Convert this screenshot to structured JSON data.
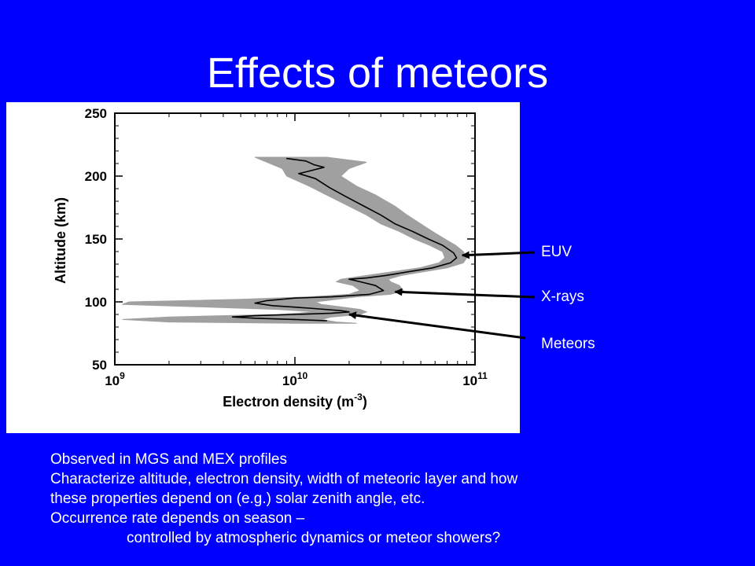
{
  "slide": {
    "title": "Effects of meteors"
  },
  "chart_data": {
    "type": "line",
    "xlabel": "Electron density (m-3)",
    "ylabel": "Altitude (km)",
    "x_scale": "log",
    "xlim": [
      1000000000.0,
      100000000000.0
    ],
    "ylim": [
      50,
      250
    ],
    "x_ticks": [
      {
        "value": 1000000000.0,
        "base": "10",
        "exp": "9"
      },
      {
        "value": 10000000000.0,
        "base": "10",
        "exp": "10"
      },
      {
        "value": 100000000000.0,
        "base": "10",
        "exp": "11"
      }
    ],
    "y_ticks": [
      50,
      100,
      150,
      200,
      250
    ],
    "series": [
      {
        "role": "mean profile",
        "color": "#000000",
        "points": [
          {
            "x": 9000000000.0,
            "y": 214
          },
          {
            "x": 11500000000.0,
            "y": 212
          },
          {
            "x": 12800000000.0,
            "y": 209
          },
          {
            "x": 14500000000.0,
            "y": 207
          },
          {
            "x": 12000000000.0,
            "y": 204
          },
          {
            "x": 10500000000.0,
            "y": 202
          },
          {
            "x": 13000000000.0,
            "y": 198
          },
          {
            "x": 15500000000.0,
            "y": 191
          },
          {
            "x": 19000000000.0,
            "y": 184
          },
          {
            "x": 25000000000.0,
            "y": 175
          },
          {
            "x": 30000000000.0,
            "y": 169
          },
          {
            "x": 36000000000.0,
            "y": 162
          },
          {
            "x": 45000000000.0,
            "y": 156
          },
          {
            "x": 55000000000.0,
            "y": 150
          },
          {
            "x": 66000000000.0,
            "y": 145
          },
          {
            "x": 76000000000.0,
            "y": 139
          },
          {
            "x": 79000000000.0,
            "y": 135
          },
          {
            "x": 73000000000.0,
            "y": 131
          },
          {
            "x": 58000000000.0,
            "y": 127
          },
          {
            "x": 43000000000.0,
            "y": 124
          },
          {
            "x": 32000000000.0,
            "y": 121
          },
          {
            "x": 25000000000.0,
            "y": 119
          },
          {
            "x": 20000000000.0,
            "y": 118
          },
          {
            "x": 23000000000.0,
            "y": 116
          },
          {
            "x": 28000000000.0,
            "y": 113
          },
          {
            "x": 31000000000.0,
            "y": 109
          },
          {
            "x": 26000000000.0,
            "y": 106
          },
          {
            "x": 16000000000.0,
            "y": 104
          },
          {
            "x": 10000000000.0,
            "y": 103
          },
          {
            "x": 7000000000.0,
            "y": 101
          },
          {
            "x": 6000000000.0,
            "y": 99
          },
          {
            "x": 7500000000.0,
            "y": 97
          },
          {
            "x": 12000000000.0,
            "y": 95
          },
          {
            "x": 18000000000.0,
            "y": 93
          },
          {
            "x": 20000000000.0,
            "y": 92
          },
          {
            "x": 16000000000.0,
            "y": 91
          },
          {
            "x": 10000000000.0,
            "y": 90
          },
          {
            "x": 6000000000.0,
            "y": 89
          },
          {
            "x": 4500000000.0,
            "y": 88
          },
          {
            "x": 6000000000.0,
            "y": 87
          },
          {
            "x": 10000000000.0,
            "y": 86
          },
          {
            "x": 15000000000.0,
            "y": 85
          }
        ]
      },
      {
        "role": "variability band",
        "color": "#a0a0a0",
        "lower": [
          {
            "x": 6000000000.0,
            "y": 215
          },
          {
            "x": 7000000000.0,
            "y": 211
          },
          {
            "x": 8500000000.0,
            "y": 206
          },
          {
            "x": 9000000000.0,
            "y": 200
          },
          {
            "x": 12000000000.0,
            "y": 192
          },
          {
            "x": 15000000000.0,
            "y": 185
          },
          {
            "x": 20000000000.0,
            "y": 176
          },
          {
            "x": 25000000000.0,
            "y": 169
          },
          {
            "x": 30000000000.0,
            "y": 162
          },
          {
            "x": 38000000000.0,
            "y": 156
          },
          {
            "x": 46000000000.0,
            "y": 150
          },
          {
            "x": 56000000000.0,
            "y": 145
          },
          {
            "x": 66000000000.0,
            "y": 140
          },
          {
            "x": 68000000000.0,
            "y": 135
          },
          {
            "x": 63000000000.0,
            "y": 131
          },
          {
            "x": 49000000000.0,
            "y": 127
          },
          {
            "x": 35000000000.0,
            "y": 124
          },
          {
            "x": 25000000000.0,
            "y": 121
          },
          {
            "x": 18000000000.0,
            "y": 118
          },
          {
            "x": 17000000000.0,
            "y": 116
          },
          {
            "x": 21000000000.0,
            "y": 113
          },
          {
            "x": 23000000000.0,
            "y": 109
          },
          {
            "x": 20000000000.0,
            "y": 106
          },
          {
            "x": 12000000000.0,
            "y": 104
          },
          {
            "x": 5000000000.0,
            "y": 102
          },
          {
            "x": 1200000000.0,
            "y": 100
          },
          {
            "x": 1100000000.0,
            "y": 98
          },
          {
            "x": 3000000000.0,
            "y": 96
          },
          {
            "x": 8000000000.0,
            "y": 94
          },
          {
            "x": 13000000000.0,
            "y": 92
          },
          {
            "x": 8000000000.0,
            "y": 90
          },
          {
            "x": 2000000000.0,
            "y": 88
          },
          {
            "x": 1100000000.0,
            "y": 86
          },
          {
            "x": 2000000000.0,
            "y": 84
          },
          {
            "x": 10000000000.0,
            "y": 83
          }
        ],
        "upper": [
          {
            "x": 15000000000.0,
            "y": 215
          },
          {
            "x": 25000000000.0,
            "y": 211
          },
          {
            "x": 20000000000.0,
            "y": 206
          },
          {
            "x": 18000000000.0,
            "y": 200
          },
          {
            "x": 22000000000.0,
            "y": 192
          },
          {
            "x": 28000000000.0,
            "y": 185
          },
          {
            "x": 36000000000.0,
            "y": 176
          },
          {
            "x": 42000000000.0,
            "y": 169
          },
          {
            "x": 50000000000.0,
            "y": 162
          },
          {
            "x": 58000000000.0,
            "y": 156
          },
          {
            "x": 68000000000.0,
            "y": 150
          },
          {
            "x": 78000000000.0,
            "y": 145
          },
          {
            "x": 86000000000.0,
            "y": 140
          },
          {
            "x": 90000000000.0,
            "y": 135
          },
          {
            "x": 86000000000.0,
            "y": 131
          },
          {
            "x": 70000000000.0,
            "y": 127
          },
          {
            "x": 52000000000.0,
            "y": 124
          },
          {
            "x": 39000000000.0,
            "y": 121
          },
          {
            "x": 33000000000.0,
            "y": 118
          },
          {
            "x": 34000000000.0,
            "y": 116
          },
          {
            "x": 38000000000.0,
            "y": 113
          },
          {
            "x": 40000000000.0,
            "y": 109
          },
          {
            "x": 34000000000.0,
            "y": 106
          },
          {
            "x": 22000000000.0,
            "y": 104
          },
          {
            "x": 17000000000.0,
            "y": 102
          },
          {
            "x": 13000000000.0,
            "y": 100
          },
          {
            "x": 14000000000.0,
            "y": 98
          },
          {
            "x": 18000000000.0,
            "y": 96
          },
          {
            "x": 23000000000.0,
            "y": 94
          },
          {
            "x": 25000000000.0,
            "y": 92
          },
          {
            "x": 23000000000.0,
            "y": 90
          },
          {
            "x": 16000000000.0,
            "y": 88
          },
          {
            "x": 14000000000.0,
            "y": 86
          },
          {
            "x": 17000000000.0,
            "y": 84
          },
          {
            "x": 22000000000.0,
            "y": 83
          }
        ]
      }
    ],
    "grid": false
  },
  "annotations": [
    {
      "label": "EUV",
      "target": {
        "x": 85000000000.0,
        "y": 137
      }
    },
    {
      "label": "X-rays",
      "target": {
        "x": 36000000000.0,
        "y": 108
      }
    },
    {
      "label": "Meteors",
      "target": {
        "x": 20000000000.0,
        "y": 90
      }
    }
  ],
  "notes": [
    {
      "text": "Observed in MGS and MEX profiles",
      "indent": false
    },
    {
      "text": "Characterize altitude, electron density, width of meteoric layer and how",
      "indent": false
    },
    {
      "text": "these properties depend on (e.g.) solar zenith angle, etc.",
      "indent": false
    },
    {
      "text": "Occurrence rate depends on season –",
      "indent": false
    },
    {
      "text": "controlled by atmospheric dynamics or meteor showers?",
      "indent": true
    }
  ],
  "colors": {
    "background": "#0000ff",
    "text": "#ffffff",
    "band": "#a0a0a0",
    "line": "#000000",
    "figure_bg": "#ffffff"
  }
}
